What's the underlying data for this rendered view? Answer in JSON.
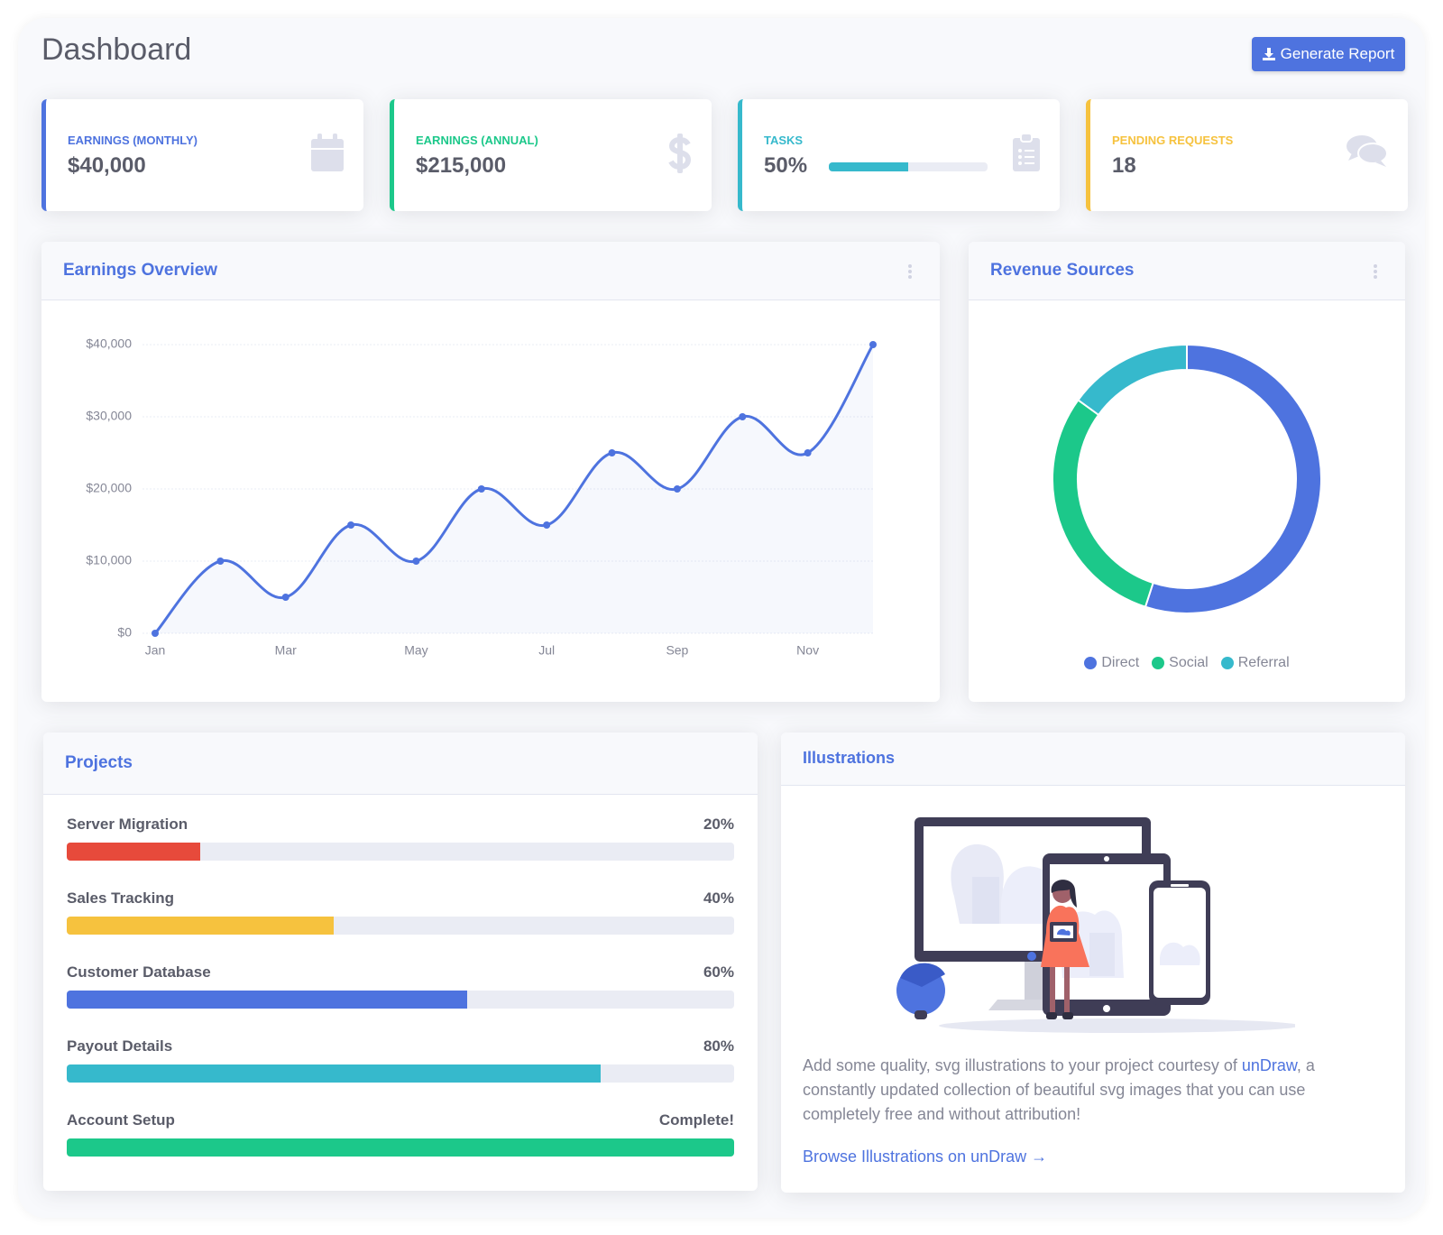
{
  "header": {
    "title": "Dashboard",
    "button": "Generate Report"
  },
  "stats": [
    {
      "label": "EARNINGS (MONTHLY)",
      "value": "$40,000",
      "color": "#4e73df"
    },
    {
      "label": "EARNINGS (ANNUAL)",
      "value": "$215,000",
      "color": "#1cc88a"
    },
    {
      "label": "TASKS",
      "value": {
        "value": 50,
        "label": "50%"
      },
      "color": "#36b9cc"
    },
    {
      "label": "PENDING REQUESTS",
      "value": "18",
      "color": "#f6c23e"
    }
  ],
  "chart_data": [
    {
      "type": "line",
      "title": "Earnings Overview",
      "categories": [
        "Jan",
        null,
        "Mar",
        null,
        "May",
        null,
        "Jul",
        null,
        "Sep",
        null,
        "Nov",
        null
      ],
      "values": [
        0,
        10000,
        5000,
        15000,
        10000,
        20000,
        15000,
        25000,
        20000,
        30000,
        25000,
        40000
      ],
      "color": "#4e73df",
      "ylim": [
        0,
        40000
      ],
      "yticks": [
        {
          "value": 0,
          "label": "$0"
        },
        {
          "value": 10000,
          "label": "$10,000"
        },
        {
          "value": 20000,
          "label": "$20,000"
        },
        {
          "value": 30000,
          "label": "$30,000"
        },
        {
          "value": 40000,
          "label": "$40,000"
        }
      ],
      "grid": true
    },
    {
      "type": "donut",
      "title": "Revenue Sources",
      "categories": [
        "Direct",
        "Social",
        "Referral"
      ],
      "values": [
        55,
        30,
        15
      ],
      "colors": [
        "#4e73df",
        "#1cc88a",
        "#36b9cc"
      ],
      "legend": "bottom"
    }
  ],
  "projects": {
    "title": "Projects",
    "items": [
      {
        "name": "Server Migration",
        "value": 20,
        "label": "20%",
        "color": "#e74a3b"
      },
      {
        "name": "Sales Tracking",
        "value": 40,
        "label": "40%",
        "color": "#f6c23e"
      },
      {
        "name": "Customer Database",
        "value": 60,
        "label": "60%",
        "color": "#4e73df"
      },
      {
        "name": "Payout Details",
        "value": 80,
        "label": "80%",
        "color": "#36b9cc"
      },
      {
        "name": "Account Setup",
        "value": 100,
        "label": "Complete!",
        "color": "#1cc88a"
      }
    ]
  },
  "illustrations": {
    "title": "Illustrations",
    "text_before": "Add some quality, svg illustrations to your project courtesy of ",
    "link": "unDraw",
    "text_after": ", a constantly updated collection of beautiful svg images that you can use completely free and without attribution!",
    "cta": "Browse Illustrations on unDraw →"
  }
}
